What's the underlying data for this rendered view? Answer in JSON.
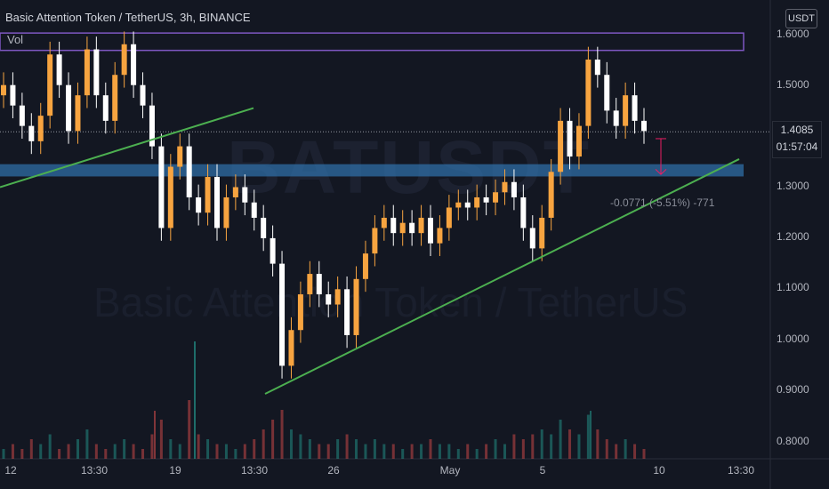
{
  "legend": {
    "title": "Basic Attention Token / TetherUS, 3h, BINANCE",
    "volume_label": "Vol"
  },
  "currency": "USDT",
  "watermark": {
    "symbol": "BATUSDT",
    "description": "Basic Attention Token / TetherUS"
  },
  "colors": {
    "background": "#131722",
    "up": "#f7a440",
    "down": "#ffffff",
    "trendline": "#4caf50",
    "zone_blue": "#2f6ea5",
    "zone_purple": "#7e57c2",
    "measure": "#e91e63"
  },
  "price_tag": {
    "value": "1.4085",
    "countdown": "01:57:04"
  },
  "measure": {
    "label": "-0.0771 (-5.51%) -771"
  },
  "chart_data": {
    "type": "candlestick",
    "title": "Basic Attention Token / TetherUS, 3h, BINANCE",
    "xlabel": "",
    "ylabel": "",
    "ylim": [
      0.78,
      1.63
    ],
    "y_scale": "linear",
    "grid": false,
    "x_tick_labels": [
      "12",
      "13:30",
      "19",
      "13:30",
      "26",
      "May",
      "5",
      "10",
      "13:30"
    ],
    "y_tick_labels": [
      "1.6000",
      "1.5000",
      "1.4000",
      "1.3000",
      "1.2000",
      "1.1000",
      "1.0000",
      "0.9000",
      "0.8000"
    ],
    "y_ticks": [
      1.6,
      1.5,
      1.4,
      1.3,
      1.2,
      1.1,
      1.0,
      0.9,
      0.8
    ],
    "last_price": 1.4085,
    "series": [
      {
        "values": [
          1.5,
          1.46,
          1.42,
          1.39,
          1.44,
          1.56,
          1.5,
          1.41,
          1.48,
          1.57,
          1.48,
          1.43,
          1.52,
          1.58,
          1.5,
          1.46,
          1.38,
          1.22,
          1.34,
          1.38,
          1.28,
          1.25,
          1.32,
          1.22,
          1.28,
          1.3,
          1.27,
          1.24,
          1.2,
          1.15,
          0.95,
          1.02,
          1.09,
          1.13,
          1.09,
          1.07,
          1.1,
          1.01,
          1.12,
          1.17,
          1.22,
          1.24,
          1.21,
          1.23,
          1.21,
          1.24,
          1.19,
          1.22,
          1.26,
          1.27,
          1.26,
          1.28,
          1.27,
          1.29,
          1.31,
          1.28,
          1.22,
          1.18,
          1.24,
          1.33,
          1.43,
          1.36,
          1.42,
          1.55,
          1.52,
          1.45,
          1.42,
          1.48,
          1.43,
          1.41
        ]
      }
    ],
    "volume": {
      "values": [
        2,
        3,
        2,
        4,
        3,
        5,
        2,
        3,
        4,
        6,
        3,
        2,
        3,
        4,
        3,
        2,
        5,
        8,
        4,
        3,
        12,
        5,
        4,
        3,
        3,
        2,
        3,
        4,
        6,
        8,
        10,
        6,
        5,
        4,
        3,
        3,
        4,
        5,
        4,
        3,
        4,
        3,
        3,
        2,
        3,
        3,
        4,
        3,
        3,
        2,
        3,
        2,
        3,
        4,
        3,
        5,
        4,
        5,
        6,
        5,
        8,
        6,
        5,
        9,
        6,
        4,
        3,
        4,
        3,
        2
      ]
    },
    "trendlines": [
      {
        "from": [
          "1 may 9 week start",
          1.29
        ],
        "to": [
          "13:30 first",
          1.45
        ]
      },
      {
        "from": [
          "13:30 second",
          0.9
        ],
        "to": [
          "after 10",
          1.35
        ]
      }
    ],
    "zones": [
      {
        "color": "purple",
        "low": 1.57,
        "high": 1.6
      },
      {
        "color": "blue",
        "low": 1.32,
        "high": 1.34
      }
    ]
  }
}
